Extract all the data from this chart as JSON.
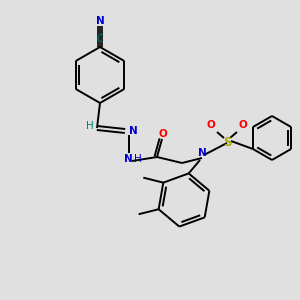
{
  "bg": "#e0e0e0",
  "bc": "#000000",
  "nc": "#0000cc",
  "oc": "#ff0000",
  "sc": "#aaaa00",
  "tealc": "#008080",
  "lw": 1.4,
  "fs": 7.5,
  "fig_w": 3.0,
  "fig_h": 3.0,
  "dpi": 100,
  "xlim": [
    0,
    300
  ],
  "ylim": [
    0,
    300
  ]
}
